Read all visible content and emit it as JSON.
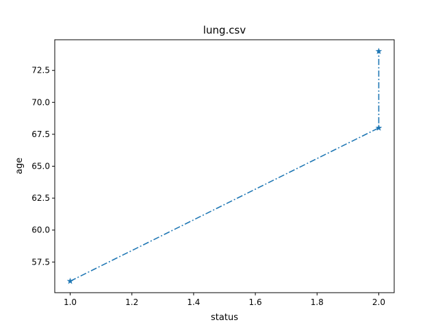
{
  "chart_data": {
    "type": "line",
    "title": "lung.csv",
    "xlabel": "status",
    "ylabel": "age",
    "xlim": [
      0.95,
      2.05
    ],
    "ylim": [
      55.1,
      74.9
    ],
    "xticks": [
      1.0,
      1.2,
      1.4,
      1.6,
      1.8,
      2.0
    ],
    "xtick_labels": [
      "1.0",
      "1.2",
      "1.4",
      "1.6",
      "1.8",
      "2.0"
    ],
    "yticks": [
      57.5,
      60.0,
      62.5,
      65.0,
      67.5,
      70.0,
      72.5
    ],
    "ytick_labels": [
      "57.5",
      "60.0",
      "62.5",
      "65.0",
      "67.5",
      "70.0",
      "72.5"
    ],
    "grid": false,
    "series": [
      {
        "color": "#1f77b4",
        "line_style": "dash-dot",
        "marker": "star",
        "x": [
          1,
          2,
          2
        ],
        "y": [
          56,
          68,
          74
        ]
      }
    ]
  }
}
